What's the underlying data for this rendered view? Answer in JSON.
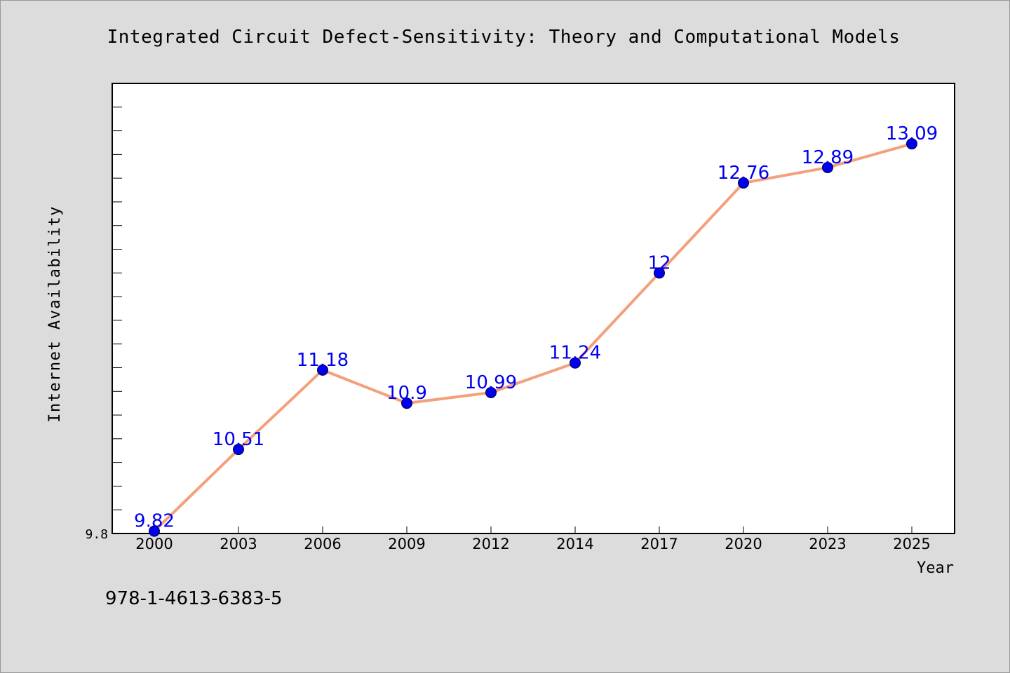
{
  "chart_data": {
    "type": "line",
    "title": "Integrated Circuit Defect-Sensitivity: Theory and Computational Models",
    "xlabel": "Year",
    "ylabel": "Internet Availability",
    "categories": [
      "2000",
      "2003",
      "2006",
      "2009",
      "2012",
      "2014",
      "2017",
      "2020",
      "2023",
      "2025"
    ],
    "series": [
      {
        "values": [
          9.82,
          10.51,
          11.18,
          10.9,
          10.99,
          11.24,
          12.0,
          12.76,
          12.89,
          13.09
        ],
        "data_labels": [
          "9.82",
          "10.51",
          "11.18",
          "10.9",
          "10.99",
          "11.24",
          "12",
          "12.76",
          "12.89",
          "13.09"
        ]
      }
    ],
    "ylim": [
      9.8,
      13.6
    ],
    "y_tick_labels": [
      "9.8"
    ],
    "grid": false,
    "legend": "none",
    "colors": {
      "line": "#f4a07c",
      "marker": "#0000ee",
      "data_label": "#0000ee",
      "plot_background": "#ffffff",
      "page_background": "#dcdcdc"
    }
  },
  "footer": {
    "isbn": "978-1-4613-6383-5"
  }
}
